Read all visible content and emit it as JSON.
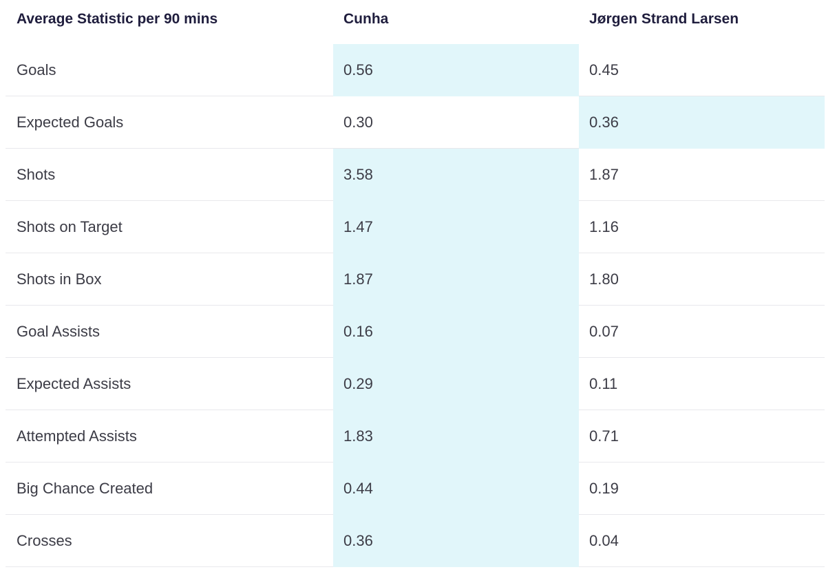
{
  "header": {
    "statistic_label": "Average Statistic per 90 mins",
    "player_a": "Cunha",
    "player_b": "Jørgen Strand Larsen"
  },
  "highlight_color": "#e1f6fa",
  "rows": [
    {
      "label": "Goals",
      "a": "0.56",
      "b": "0.45",
      "leader": "a"
    },
    {
      "label": "Expected Goals",
      "a": "0.30",
      "b": "0.36",
      "leader": "b"
    },
    {
      "label": "Shots",
      "a": "3.58",
      "b": "1.87",
      "leader": "a"
    },
    {
      "label": "Shots on Target",
      "a": "1.47",
      "b": "1.16",
      "leader": "a"
    },
    {
      "label": "Shots in Box",
      "a": "1.87",
      "b": "1.80",
      "leader": "a"
    },
    {
      "label": "Goal Assists",
      "a": "0.16",
      "b": "0.07",
      "leader": "a"
    },
    {
      "label": "Expected Assists",
      "a": "0.29",
      "b": "0.11",
      "leader": "a"
    },
    {
      "label": "Attempted Assists",
      "a": "1.83",
      "b": "0.71",
      "leader": "a"
    },
    {
      "label": "Big Chance Created",
      "a": "0.44",
      "b": "0.19",
      "leader": "a"
    },
    {
      "label": "Crosses",
      "a": "0.36",
      "b": "0.04",
      "leader": "a"
    }
  ]
}
